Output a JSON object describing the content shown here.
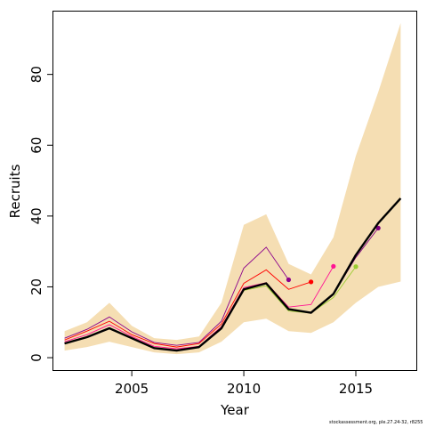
{
  "chart_data": {
    "type": "line",
    "title": "",
    "xlabel": "Year",
    "ylabel": "Recruits",
    "xlim": [
      2001.5,
      2017.7
    ],
    "ylim": [
      -3.5,
      98
    ],
    "x_ticks": [
      2005,
      2010,
      2015
    ],
    "y_ticks": [
      0,
      20,
      40,
      60,
      80
    ],
    "grid": false,
    "legend": "none",
    "band": {
      "color": "#f5deb3",
      "x": [
        2002,
        2003,
        2004,
        2005,
        2006,
        2007,
        2008,
        2009,
        2010,
        2011,
        2012,
        2013,
        2014,
        2015,
        2016,
        2017
      ],
      "lower": [
        2.0,
        3.0,
        4.5,
        3.0,
        1.5,
        1.0,
        1.5,
        4.5,
        10.0,
        11.0,
        7.5,
        7.0,
        10.0,
        15.5,
        20.0,
        21.5
      ],
      "upper": [
        7.5,
        10.0,
        15.5,
        9.0,
        5.5,
        5.0,
        6.0,
        15.5,
        37.5,
        40.5,
        26.5,
        23.5,
        34.0,
        57.0,
        75.0,
        94.5
      ]
    },
    "main": {
      "color": "#000000",
      "x": [
        2002,
        2003,
        2004,
        2005,
        2006,
        2007,
        2008,
        2009,
        2010,
        2011,
        2012,
        2013,
        2014,
        2015,
        2016,
        2017
      ],
      "values": [
        4.0,
        5.8,
        8.3,
        5.5,
        2.7,
        2.0,
        3.0,
        8.3,
        19.3,
        21.0,
        13.7,
        12.7,
        18.0,
        29.0,
        38.0,
        45.0
      ]
    },
    "series": [
      {
        "color": "#8b008b",
        "end_x": 2012,
        "values": [
          5.5,
          8.0,
          11.5,
          7.3,
          4.3,
          3.5,
          4.3,
          10.3,
          25.3,
          31.2,
          22.0
        ]
      },
      {
        "color": "#ff0000",
        "end_x": 2013,
        "values": [
          5.0,
          7.5,
          10.3,
          6.5,
          4.0,
          3.0,
          4.0,
          9.5,
          21.0,
          24.8,
          19.3,
          21.4
        ]
      },
      {
        "color": "#ff1493",
        "end_x": 2014,
        "values": [
          4.5,
          6.5,
          9.3,
          6.0,
          3.2,
          2.5,
          3.2,
          8.8,
          19.8,
          21.2,
          14.3,
          15.0,
          25.8
        ]
      },
      {
        "color": "#9acd32",
        "end_x": 2015,
        "values": [
          4.0,
          5.8,
          8.3,
          5.5,
          2.8,
          2.1,
          3.0,
          8.3,
          19.0,
          20.3,
          13.2,
          12.6,
          17.0,
          25.7
        ]
      },
      {
        "color": "#800080",
        "end_x": 2016,
        "values": [
          4.0,
          5.9,
          8.4,
          5.6,
          2.8,
          2.1,
          3.0,
          8.4,
          19.2,
          20.9,
          13.8,
          12.8,
          18.0,
          28.3,
          36.6
        ]
      }
    ]
  },
  "credit": "stockassessment.org, ple.27.24-32, r8255"
}
